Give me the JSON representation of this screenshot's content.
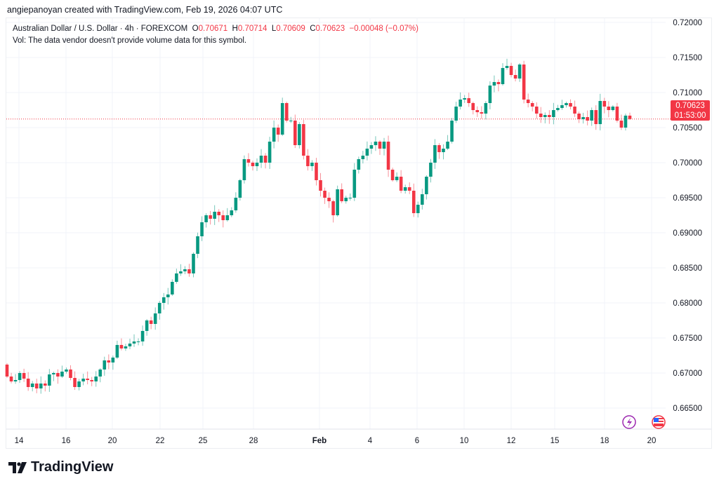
{
  "credit": "angiepanoyan created with TradingView.com, Feb 19, 2026 04:07 UTC",
  "legend": {
    "symbol": "Australian Dollar / U.S. Dollar · 4h · FOREXCOM",
    "o_label": "O",
    "o": "0.70671",
    "h_label": "H",
    "h": "0.70714",
    "l_label": "L",
    "l": "0.70609",
    "c_label": "C",
    "c": "0.70623",
    "change": "−0.00048 (−0.07%)",
    "vol": "Vol: The data vendor doesn't provide volume data for this symbol."
  },
  "price_label": {
    "price": "0.70623",
    "countdown": "01:53:00"
  },
  "logo": "TradingView",
  "colors": {
    "up": "#089981",
    "down": "#f23645",
    "grid": "#f0f3fa",
    "text": "#131722"
  },
  "chart_data": {
    "type": "candlestick",
    "title": "Australian Dollar / U.S. Dollar · 4h · FOREXCOM",
    "ylim": [
      0.664,
      0.7215
    ],
    "y_ticks": [
      "0.72000",
      "0.71500",
      "0.71000",
      "0.70500",
      "0.70000",
      "0.69500",
      "0.69000",
      "0.68500",
      "0.68000",
      "0.67500",
      "0.67000",
      "0.66500"
    ],
    "x_ticks": [
      "14",
      "16",
      "20",
      "22",
      "25",
      "28",
      "Feb",
      "4",
      "6",
      "10",
      "12",
      "15",
      "18",
      "20"
    ],
    "last_price": 0.70623,
    "first_open": 0.6712,
    "close": [
      0.6695,
      0.6688,
      0.669,
      0.67,
      0.6692,
      0.668,
      0.6685,
      0.6678,
      0.6685,
      0.6682,
      0.6698,
      0.67,
      0.6695,
      0.6702,
      0.6705,
      0.6693,
      0.668,
      0.6688,
      0.6692,
      0.669,
      0.6688,
      0.6695,
      0.6705,
      0.6718,
      0.6715,
      0.6722,
      0.674,
      0.6735,
      0.6738,
      0.6742,
      0.6745,
      0.6745,
      0.676,
      0.6775,
      0.677,
      0.6785,
      0.68,
      0.6808,
      0.6812,
      0.683,
      0.6842,
      0.6845,
      0.6848,
      0.6842,
      0.687,
      0.6895,
      0.6915,
      0.6925,
      0.692,
      0.693,
      0.6925,
      0.6918,
      0.6925,
      0.6932,
      0.695,
      0.6975,
      0.7005,
      0.7,
      0.6995,
      0.7,
      0.701,
      0.7,
      0.703,
      0.705,
      0.704,
      0.7085,
      0.706,
      0.706,
      0.7025,
      0.7055,
      0.701,
      0.6995,
      0.7,
      0.6975,
      0.696,
      0.695,
      0.6945,
      0.6925,
      0.6962,
      0.6945,
      0.695,
      0.695,
      0.699,
      0.7005,
      0.701,
      0.702,
      0.7025,
      0.703,
      0.702,
      0.703,
      0.699,
      0.6975,
      0.698,
      0.696,
      0.6965,
      0.696,
      0.6928,
      0.694,
      0.6955,
      0.698,
      0.7,
      0.7025,
      0.7015,
      0.702,
      0.703,
      0.706,
      0.708,
      0.709,
      0.7092,
      0.7085,
      0.7075,
      0.7072,
      0.707,
      0.7085,
      0.711,
      0.7115,
      0.7112,
      0.7135,
      0.7138,
      0.7125,
      0.712,
      0.714,
      0.709,
      0.7085,
      0.708,
      0.707,
      0.7065,
      0.7068,
      0.7065,
      0.7075,
      0.7078,
      0.7082,
      0.7085,
      0.708,
      0.707,
      0.7062,
      0.7065,
      0.706,
      0.7075,
      0.7055,
      0.7088,
      0.708,
      0.7075,
      0.708,
      0.706,
      0.705,
      0.70671,
      0.70623
    ]
  }
}
